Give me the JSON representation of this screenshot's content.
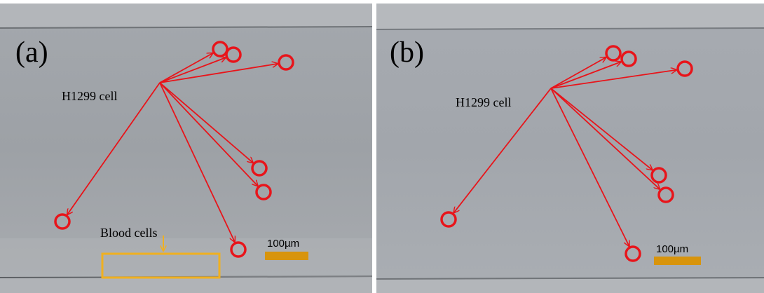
{
  "panels": [
    {
      "label": "(a)",
      "annotation": "H1299 cell",
      "blood_label": "Blood cells",
      "scale_bar": "100µm"
    },
    {
      "label": "(b)",
      "annotation": "H1299 cell",
      "scale_bar": "100µm"
    }
  ]
}
